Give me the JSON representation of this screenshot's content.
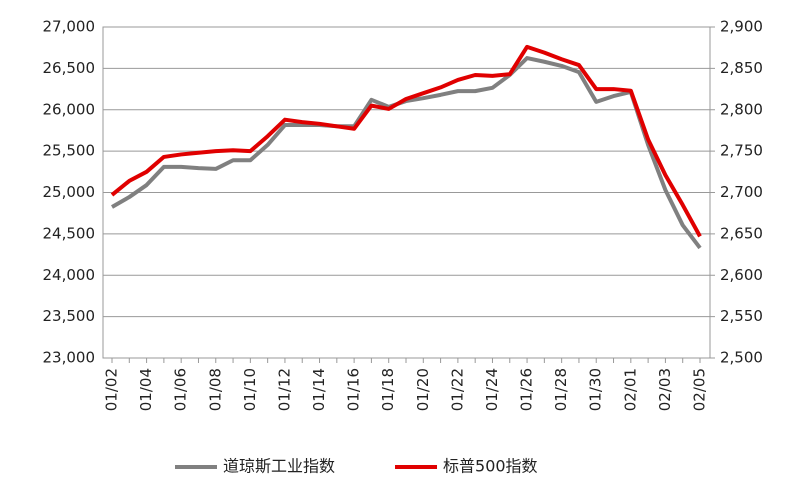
{
  "chart_data": {
    "type": "line",
    "categories": [
      "01/02",
      null,
      "01/04",
      null,
      "01/06",
      null,
      "01/08",
      null,
      "01/10",
      null,
      "01/12",
      null,
      "01/14",
      null,
      "01/16",
      null,
      "01/18",
      null,
      "01/20",
      null,
      "01/22",
      null,
      "01/24",
      null,
      "01/26",
      null,
      "01/28",
      null,
      "01/30",
      null,
      "02/01",
      null,
      "02/03",
      null,
      "02/05"
    ],
    "series": [
      {
        "name": "道琼斯工业指数",
        "color": "#808080",
        "values": [
          24825,
          24945,
          25090,
          25310,
          25310,
          25295,
          25285,
          25390,
          25390,
          25575,
          25815,
          25815,
          25815,
          25800,
          25800,
          26120,
          26035,
          26105,
          26140,
          26180,
          26225,
          26225,
          26265,
          26420,
          26625,
          26580,
          26530,
          26455,
          26095,
          26165,
          26215,
          25575,
          25030,
          24605,
          24330
        ]
      },
      {
        "name": "标普500指数",
        "color": "#e00000",
        "axis": "y2",
        "values": [
          2697,
          2714,
          2725,
          2743,
          2746,
          2748,
          2750,
          2751,
          2750,
          2768,
          2788,
          2785,
          2783,
          2780,
          2777,
          2805,
          2801,
          2813,
          2820,
          2827,
          2836,
          2842,
          2841,
          2843,
          2876,
          2869,
          2861,
          2854,
          2825,
          2825,
          2823,
          2764,
          2721,
          2685,
          2647
        ]
      }
    ],
    "ylim": [
      23000,
      27000
    ],
    "yticks": [
      {
        "value": 23000,
        "label": "23,000"
      },
      {
        "value": 23500,
        "label": "23,500"
      },
      {
        "value": 24000,
        "label": "24,000"
      },
      {
        "value": 24500,
        "label": "24,500"
      },
      {
        "value": 25000,
        "label": "25,000"
      },
      {
        "value": 25500,
        "label": "25,500"
      },
      {
        "value": 26000,
        "label": "26,000"
      },
      {
        "value": 26500,
        "label": "26,500"
      },
      {
        "value": 27000,
        "label": "27,000"
      }
    ],
    "y2lim": [
      2500,
      2900
    ],
    "y2ticks": [
      {
        "value": 2500,
        "label": "2,500"
      },
      {
        "value": 2550,
        "label": "2,550"
      },
      {
        "value": 2600,
        "label": "2,600"
      },
      {
        "value": 2650,
        "label": "2,650"
      },
      {
        "value": 2700,
        "label": "2,700"
      },
      {
        "value": 2750,
        "label": "2,750"
      },
      {
        "value": 2800,
        "label": "2,800"
      },
      {
        "value": 2850,
        "label": "2,850"
      },
      {
        "value": 2900,
        "label": "2,900"
      }
    ],
    "grid": true,
    "legend": "bottom"
  }
}
